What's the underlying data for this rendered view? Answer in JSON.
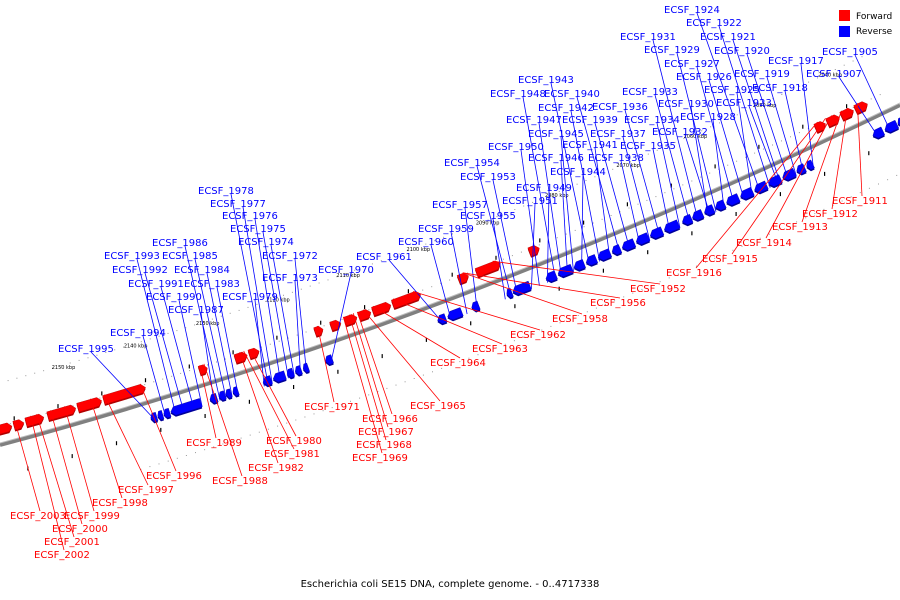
{
  "caption": "Escherichia coli SE15 DNA, complete genome. - 0..4717338",
  "legend": [
    {
      "label": "Forward",
      "color": "#ff0000"
    },
    {
      "label": "Reverse",
      "color": "#0000ff"
    }
  ],
  "colors": {
    "forward": "#ff0000",
    "reverse": "#0000ff",
    "backbone": "#808080"
  },
  "tick_labels": [
    "2040 kbp",
    "2050 kbp",
    "2060 kbp",
    "2070 kbp",
    "2080 kbp",
    "2090 kbp",
    "2100 kbp",
    "2110 kbp",
    "2120 kbp",
    "2130 kbp",
    "2140 kbp",
    "2150 kbp"
  ],
  "reverse_labels": [
    "ECSF_1905",
    "ECSF_1907",
    "ECSF_1917",
    "ECSF_1918",
    "ECSF_1919",
    "ECSF_1920",
    "ECSF_1921",
    "ECSF_1922",
    "ECSF_1923",
    "ECSF_1924",
    "ECSF_1925",
    "ECSF_1926",
    "ECSF_1927",
    "ECSF_1928",
    "ECSF_1929",
    "ECSF_1930",
    "ECSF_1931",
    "ECSF_1932",
    "ECSF_1933",
    "ECSF_1934",
    "ECSF_1935",
    "ECSF_1936",
    "ECSF_1937",
    "ECSF_1938",
    "ECSF_1939",
    "ECSF_1940",
    "ECSF_1941",
    "ECSF_1942",
    "ECSF_1943",
    "ECSF_1944",
    "ECSF_1945",
    "ECSF_1946",
    "ECSF_1947",
    "ECSF_1948",
    "ECSF_1949",
    "ECSF_1950",
    "ECSF_1951",
    "ECSF_1953",
    "ECSF_1954",
    "ECSF_1955",
    "ECSF_1957",
    "ECSF_1959",
    "ECSF_1960",
    "ECSF_1961",
    "ECSF_1970",
    "ECSF_1972",
    "ECSF_1973",
    "ECSF_1974",
    "ECSF_1975",
    "ECSF_1976",
    "ECSF_1977",
    "ECSF_1978",
    "ECSF_1979",
    "ECSF_1983",
    "ECSF_1984",
    "ECSF_1985",
    "ECSF_1986",
    "ECSF_1987",
    "ECSF_1990",
    "ECSF_1991",
    "ECSF_1992",
    "ECSF_1993",
    "ECSF_1994",
    "ECSF_1995"
  ],
  "forward_labels": [
    "ECSF_1911",
    "ECSF_1912",
    "ECSF_1913",
    "ECSF_1914",
    "ECSF_1915",
    "ECSF_1916",
    "ECSF_1952",
    "ECSF_1956",
    "ECSF_1958",
    "ECSF_1962",
    "ECSF_1963",
    "ECSF_1964",
    "ECSF_1965",
    "ECSF_1966",
    "ECSF_1967",
    "ECSF_1968",
    "ECSF_1969",
    "ECSF_1971",
    "ECSF_1980",
    "ECSF_1981",
    "ECSF_1982",
    "ECSF_1988",
    "ECSF_1989",
    "ECSF_1996",
    "ECSF_1997",
    "ECSF_1998",
    "ECSF_1999",
    "ECSF_2000",
    "ECSF_2001",
    "ECSF_2002",
    "ECSF_2003"
  ]
}
